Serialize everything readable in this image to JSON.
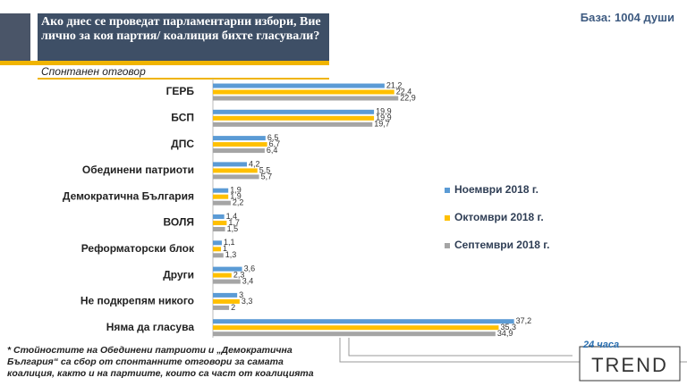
{
  "chart_data": {
    "type": "hbar",
    "title": "Ако днес се проведат парламентарни избори, Вие лично за коя партия/ коалиция бихте гласували?",
    "subtitle": "Спонтанен отговор",
    "base_note": "База: 1004 души",
    "footnote": "* Стойностите на Обединени патриоти и „Демократична България“ са сбор от спонтанните отговори за самата коалиция, както и на партиите, които са част от коалицията",
    "logo_top": "24 часа",
    "logo_bottom": "TREND",
    "categories": [
      "ГЕРБ",
      "БСП",
      "ДПС",
      "Обединени патриоти",
      "Демократична България",
      "ВОЛЯ",
      "Реформаторски блок",
      "Други",
      "Не подкрепям никого",
      "Няма да гласува"
    ],
    "xlim": [
      0,
      40
    ],
    "series": [
      {
        "name": "Ноември 2018 г.",
        "color": "#5b9bd5",
        "values": [
          21.2,
          19.9,
          6.5,
          4.2,
          1.9,
          1.4,
          1.1,
          3.6,
          3,
          37.2
        ],
        "value_labels": [
          "21,2",
          "19,9",
          "6,5",
          "4,2",
          "1,9",
          "1,4",
          "1,1",
          "3,6",
          "3",
          "37,2"
        ]
      },
      {
        "name": "Октомври 2018 г.",
        "color": "#ffc000",
        "values": [
          22.4,
          19.9,
          6.7,
          5.5,
          1.9,
          1.7,
          1,
          2.3,
          3.3,
          35.3
        ],
        "value_labels": [
          "22,4",
          "19,9",
          "6,7",
          "5,5",
          "1,9",
          "1,7",
          "1",
          "2,3",
          "3,3",
          "35,3"
        ]
      },
      {
        "name": "Септември 2018 г.",
        "color": "#a5a5a5",
        "values": [
          22.9,
          19.7,
          6.4,
          5.7,
          2.2,
          1.5,
          1.3,
          3.4,
          2,
          34.9
        ],
        "value_labels": [
          "22,9",
          "19,7",
          "6,4",
          "5,7",
          "2,2",
          "1,5",
          "1,3",
          "3,4",
          "2",
          "34,9"
        ]
      }
    ]
  }
}
